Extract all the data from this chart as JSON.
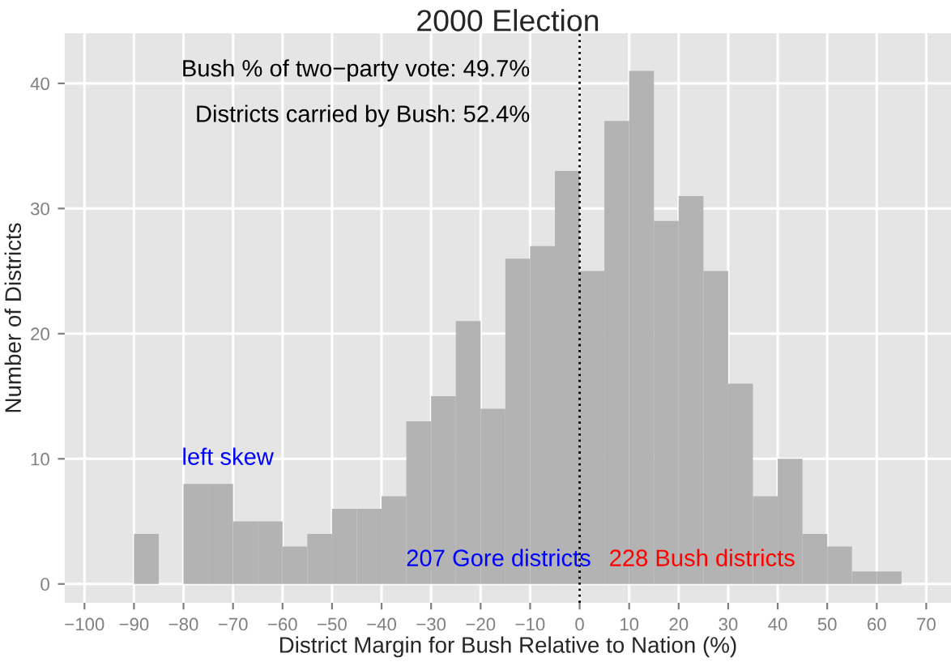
{
  "chart_data": {
    "type": "histogram",
    "title": "2000 Election",
    "xlabel": "District Margin for Bush Relative to Nation (%)",
    "ylabel": "Number of Districts",
    "bins": [
      -95,
      -90,
      -85,
      -80,
      -75,
      -70,
      -65,
      -60,
      -55,
      -50,
      -45,
      -40,
      -35,
      -30,
      -25,
      -20,
      -15,
      -10,
      -5,
      0,
      5,
      10,
      15,
      20,
      25,
      30,
      35,
      40,
      45,
      50,
      55,
      60,
      65,
      70
    ],
    "values": [
      0,
      4,
      0,
      8,
      8,
      5,
      5,
      3,
      4,
      6,
      6,
      7,
      13,
      15,
      21,
      14,
      26,
      27,
      33,
      25,
      37,
      41,
      29,
      31,
      25,
      16,
      7,
      10,
      4,
      3,
      1,
      1,
      0
    ],
    "color": "#b3b3b3",
    "xlim": [
      -104,
      75
    ],
    "xticks": [
      -100,
      -90,
      -80,
      -70,
      -60,
      -50,
      -40,
      -30,
      -20,
      -10,
      0,
      10,
      20,
      30,
      40,
      50,
      60,
      70
    ],
    "ylim": [
      -1.5,
      44
    ],
    "yticks": [
      0,
      10,
      20,
      30,
      40
    ],
    "grid": true,
    "ref_lines": [
      {
        "axis": "x",
        "value": 0,
        "line_style": "dotted",
        "color": "#000000"
      }
    ],
    "annotations": [
      "Bush % of two−party vote: 49.7%",
      "Districts carried by Bush: 52.4%",
      "left skew",
      "207 Gore districts",
      "228 Bush districts"
    ]
  }
}
